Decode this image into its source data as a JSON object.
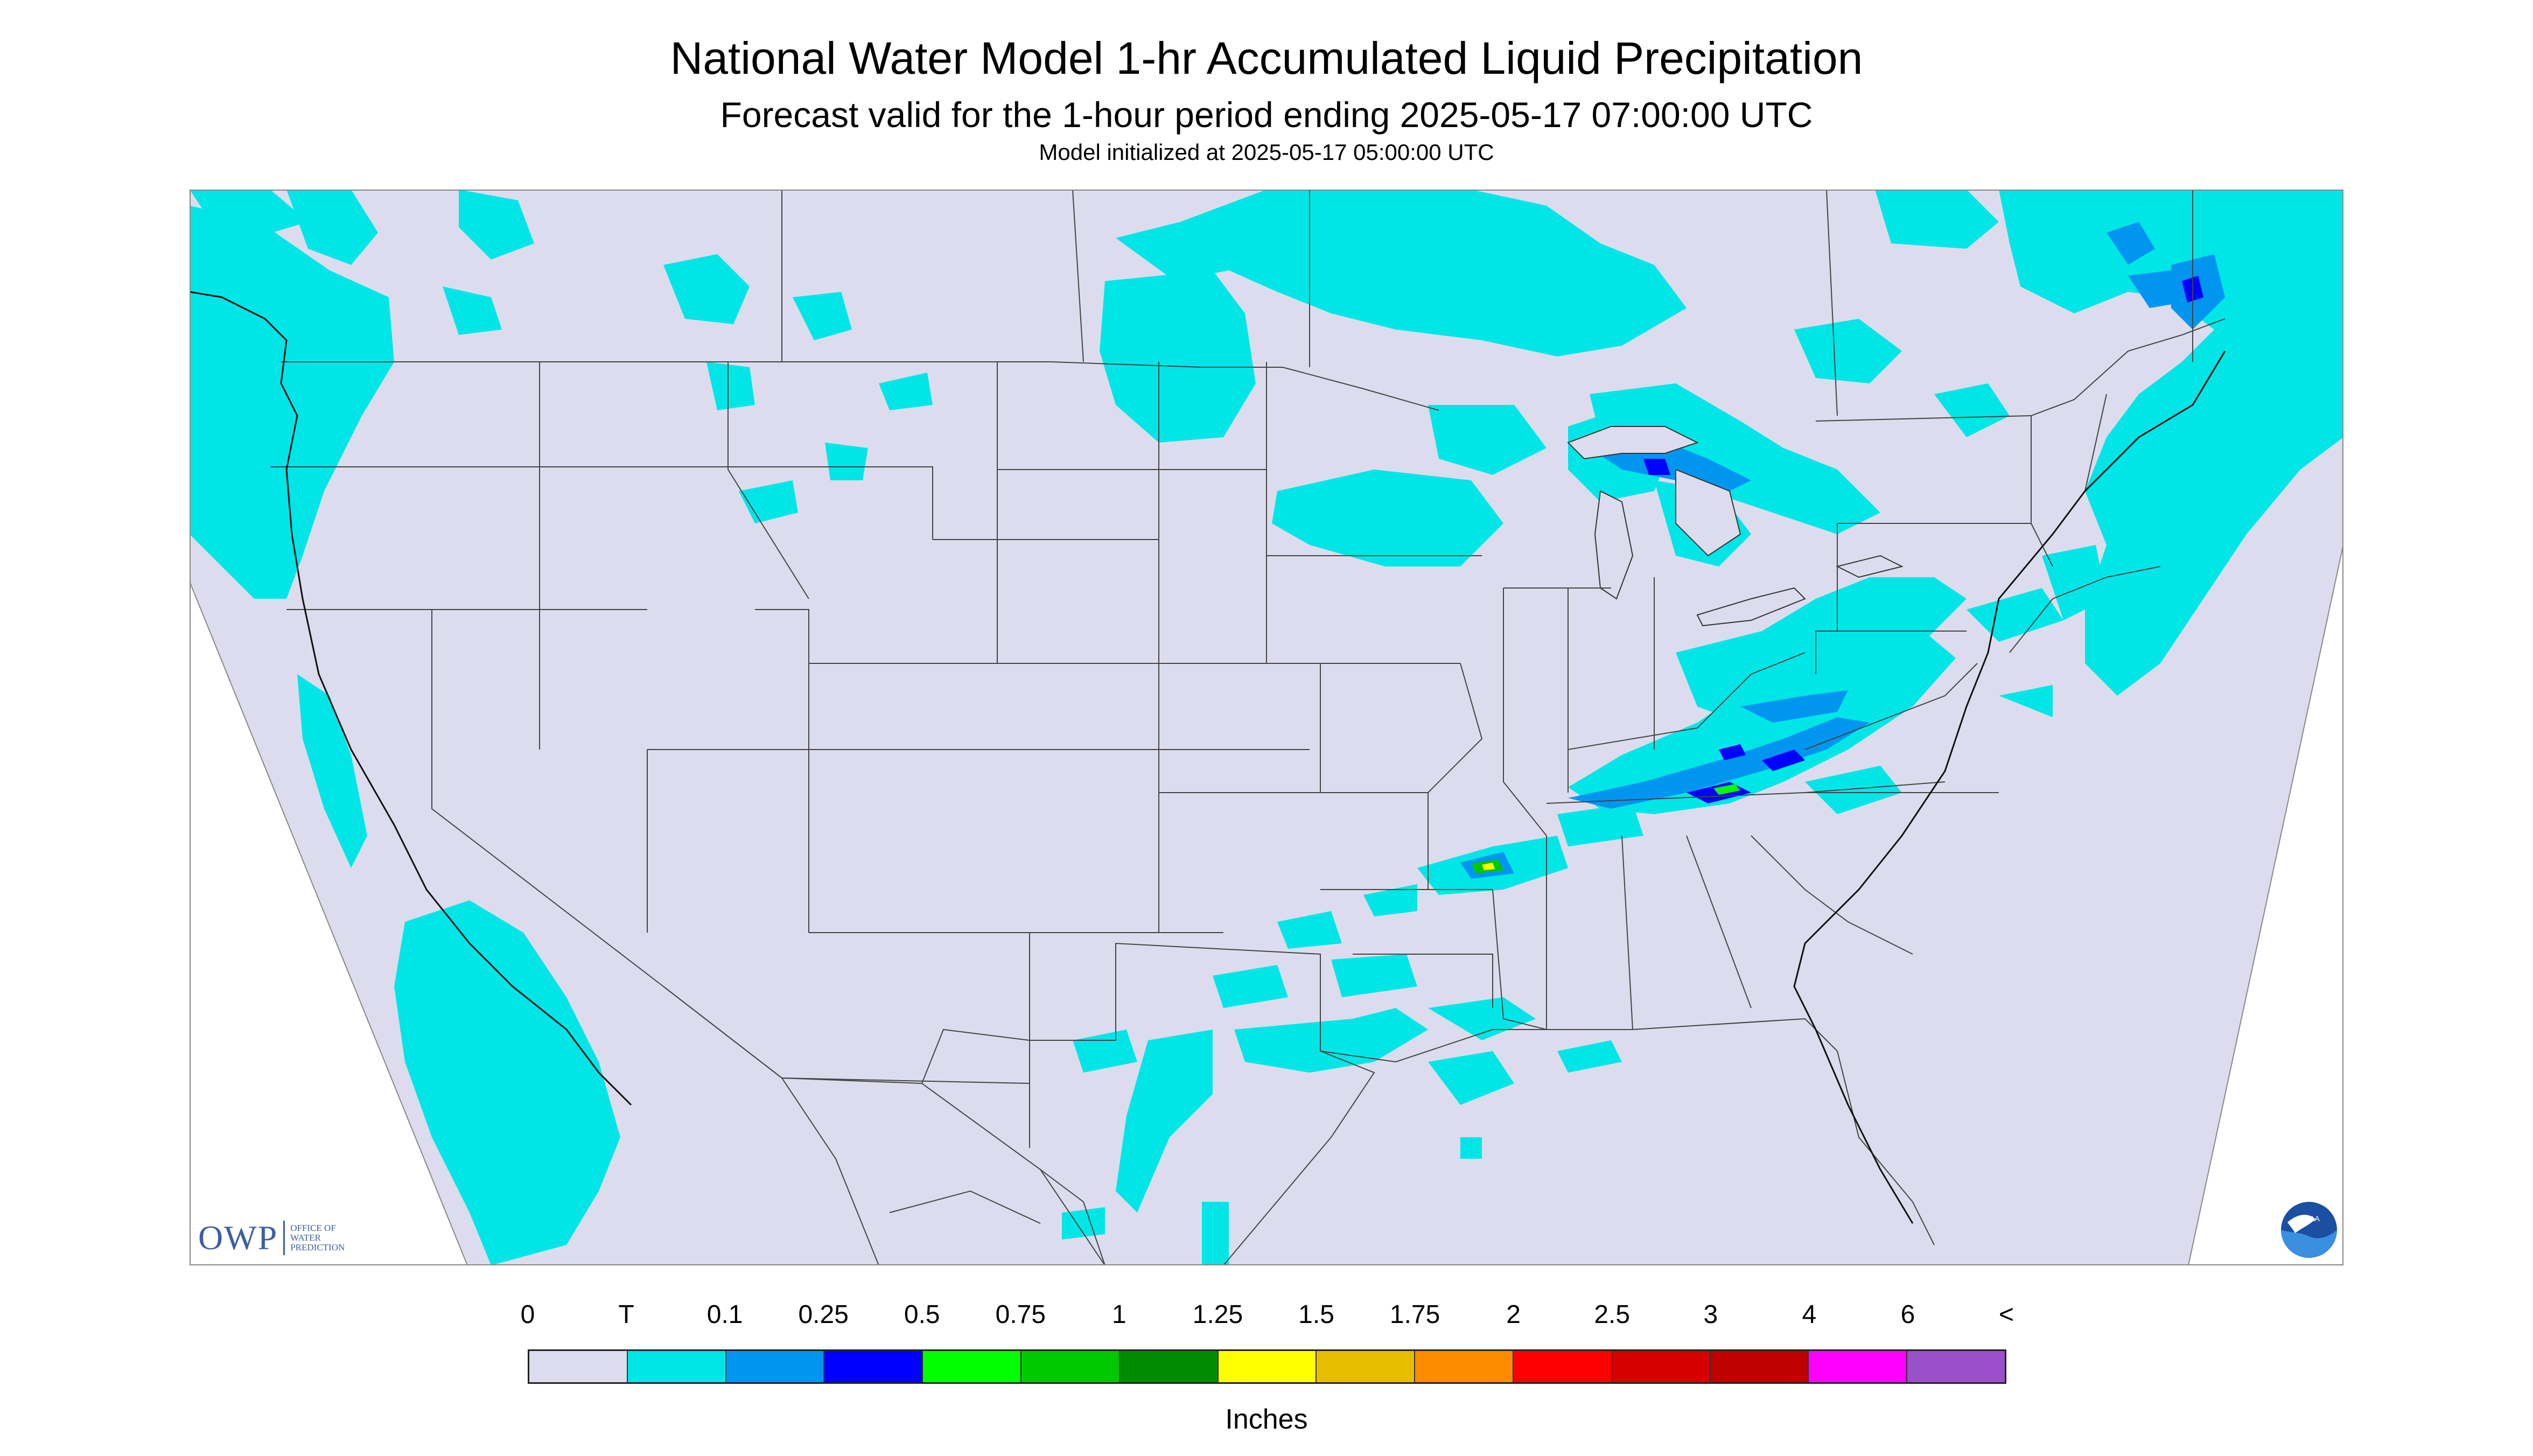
{
  "header": {
    "title": "National Water Model 1-hr Accumulated Liquid Precipitation",
    "subtitle": "Forecast valid for the 1-hour period ending 2025-05-17 07:00:00 UTC",
    "initialized": "Model initialized at 2025-05-17 05:00:00 UTC"
  },
  "map": {
    "background_color": "#dcdcee",
    "region": "CONUS"
  },
  "logos": {
    "owp_mark": "OWP",
    "owp_text_line1": "OFFICE OF",
    "owp_text_line2": "WATER",
    "owp_text_line3": "PREDICTION",
    "noaa_text": "NOAA"
  },
  "legend": {
    "labels": [
      "0",
      "T",
      "0.1",
      "0.25",
      "0.5",
      "0.75",
      "1",
      "1.25",
      "1.5",
      "1.75",
      "2",
      "2.5",
      "3",
      "4",
      "6",
      "<"
    ],
    "colors": [
      "#dcdcee",
      "#00e6e6",
      "#0096f0",
      "#0000ff",
      "#00ff00",
      "#00c800",
      "#008c00",
      "#ffff00",
      "#e6be00",
      "#ff8c00",
      "#ff0000",
      "#d70000",
      "#be0000",
      "#ff00ff",
      "#9a50c8"
    ],
    "units": "Inches"
  }
}
